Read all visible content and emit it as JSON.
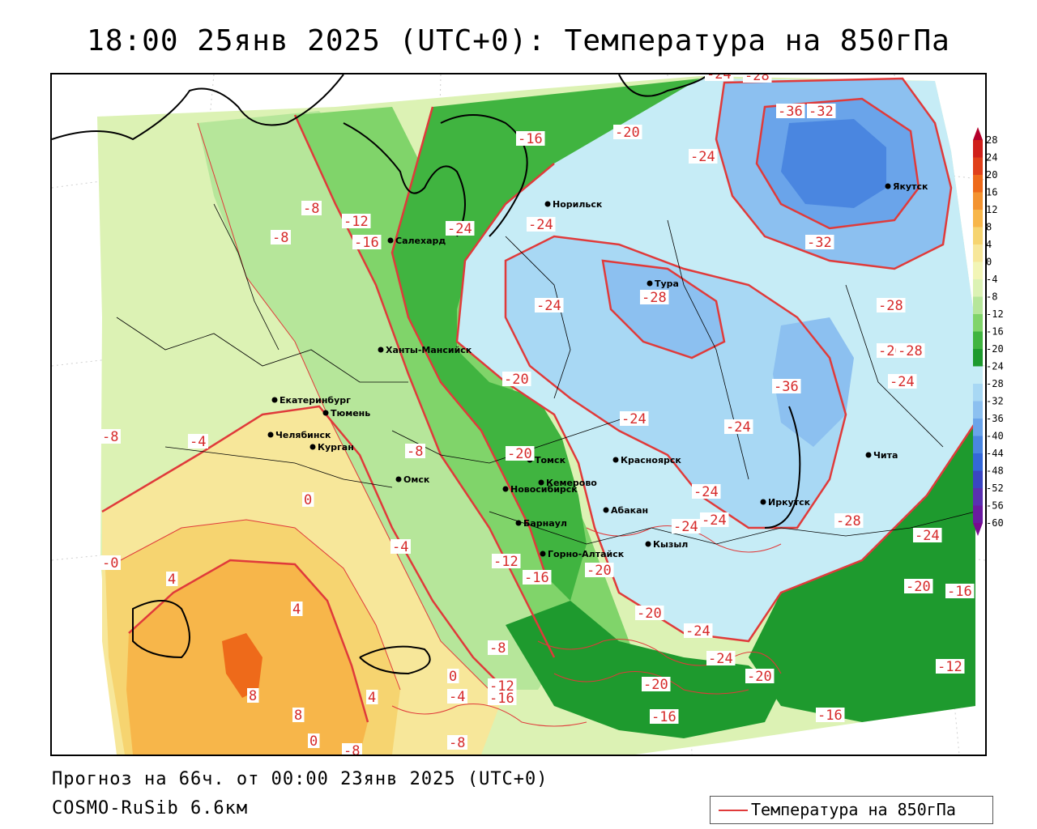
{
  "title": "18:00 25янв 2025 (UTC+0): Температура на 850гПа",
  "forecast_text": "Прогноз на 66ч. от 00:00 23янв 2025 (UTC+0)",
  "model_text": "COSMO-RuSib 6.6км",
  "legend": {
    "label": "Температура на 850гПа",
    "line_color": "#e03a3a"
  },
  "colorbar": {
    "levels": [
      "28",
      "24",
      "20",
      "16",
      "12",
      "8",
      "4",
      "0",
      "-4",
      "-8",
      "-12",
      "-16",
      "-20",
      "-24",
      "-28",
      "-32",
      "-36",
      "-40",
      "-44",
      "-48",
      "-52",
      "-56",
      "-60"
    ],
    "colors": [
      "#b4002a",
      "#d0201a",
      "#e0401a",
      "#ee6a1a",
      "#f39330",
      "#f7b64a",
      "#f6d470",
      "#f7e79a",
      "#f2f5b6",
      "#dcf2b4",
      "#b6e69a",
      "#80d46a",
      "#40b440",
      "#1e9a2e",
      "#c6ecf6",
      "#a8d8f4",
      "#8cc0f0",
      "#6aa4ea",
      "#4a86e0",
      "#3468d8",
      "#3a46c2",
      "#5a30b0",
      "#6a1aa0",
      "#780a8e"
    ]
  },
  "cities": [
    {
      "name": "Норильск"
    },
    {
      "name": "Якутск"
    },
    {
      "name": "Салехард"
    },
    {
      "name": "Тура"
    },
    {
      "name": "Ханты-Мансийск"
    },
    {
      "name": "Екатеринбург"
    },
    {
      "name": "Тюмень"
    },
    {
      "name": "Челябинск"
    },
    {
      "name": "Курган"
    },
    {
      "name": "Омск"
    },
    {
      "name": "Новосибирск"
    },
    {
      "name": "Томск"
    },
    {
      "name": "Кемерово"
    },
    {
      "name": "Красноярск"
    },
    {
      "name": "Барнаул"
    },
    {
      "name": "Абакан"
    },
    {
      "name": "Иркутск"
    },
    {
      "name": "Чита"
    },
    {
      "name": "Горно-Алтайск"
    },
    {
      "name": "Кызыл"
    }
  ],
  "contour_labels": [
    "-24",
    "-28",
    "-36",
    "-32",
    "-16",
    "-20",
    "-24",
    "-8",
    "-12",
    "-8",
    "-16",
    "-24",
    "-24",
    "-32",
    "-28",
    "-24",
    "-28",
    "-20",
    "-28",
    "-36",
    "-24",
    "-20",
    "-24",
    "-24",
    "-8",
    "-4",
    "-8",
    "-20",
    "-24",
    "-24",
    "-24",
    "-0",
    "0",
    "-4",
    "-12",
    "-16",
    "-20",
    "-28",
    "-24",
    "-20",
    "-16",
    "4",
    "4",
    "-20",
    "-24",
    "-24",
    "-20",
    "-8",
    "-12",
    "-16",
    "0",
    "4",
    "8",
    "8",
    "-4",
    "-20",
    "-16",
    "-12",
    "0",
    "-8",
    "-16",
    "-8"
  ]
}
